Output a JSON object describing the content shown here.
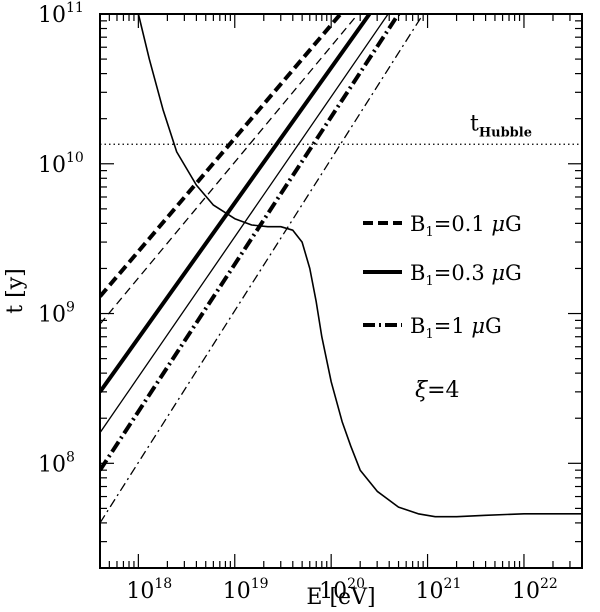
{
  "chart_data": {
    "type": "line",
    "xlabel": "E [eV]",
    "ylabel": "t [y]",
    "x_scale": "log",
    "y_scale": "log",
    "xlim": [
      4e+17,
      4e+22
    ],
    "ylim": [
      20000000.0,
      100000000000.0
    ],
    "grid": false,
    "x_ticks": [
      {
        "base": "10",
        "exp": "18",
        "value": 1e+18
      },
      {
        "base": "10",
        "exp": "19",
        "value": 1e+19
      },
      {
        "base": "10",
        "exp": "20",
        "value": 1e+20
      },
      {
        "base": "10",
        "exp": "21",
        "value": 1e+21
      },
      {
        "base": "10",
        "exp": "22",
        "value": 1e+22
      }
    ],
    "y_ticks": [
      {
        "base": "10",
        "exp": "8",
        "value": 100000000.0
      },
      {
        "base": "10",
        "exp": "9",
        "value": 1000000000.0
      },
      {
        "base": "10",
        "exp": "10",
        "value": 10000000000.0
      },
      {
        "base": "10",
        "exp": "11",
        "value": 100000000000.0
      }
    ],
    "hubble": {
      "label": "t",
      "sub": "Hubble",
      "value": 13500000000.0
    },
    "legend": [
      {
        "prefix": "B",
        "sub": "1",
        "text": "=0.1 ",
        "mu": "μ",
        "unit": "G",
        "style": "dashed"
      },
      {
        "prefix": "B",
        "sub": "1",
        "text": "=0.3 ",
        "mu": "μ",
        "unit": "G",
        "style": "solid"
      },
      {
        "prefix": "B",
        "sub": "1",
        "text": "=1 ",
        "mu": "μ",
        "unit": "G",
        "style": "dashdot"
      }
    ],
    "annotation": {
      "symbol": "ξ",
      "text": "=4"
    },
    "series": [
      {
        "style": "dashed",
        "width": "thick",
        "points": [
          [
            4e+17,
            1300000000.0
          ],
          [
            1.25e+20,
            100000000000.0
          ]
        ]
      },
      {
        "style": "dashed",
        "width": "thin",
        "points": [
          [
            4e+17,
            850000000.0
          ],
          [
            1.9e+20,
            100000000000.0
          ]
        ]
      },
      {
        "style": "solid",
        "width": "thick",
        "points": [
          [
            4e+17,
            300000000.0
          ],
          [
            2.5e+20,
            100000000000.0
          ]
        ]
      },
      {
        "style": "solid",
        "width": "thin",
        "points": [
          [
            4e+17,
            160000000.0
          ],
          [
            3.9e+20,
            100000000000.0
          ]
        ]
      },
      {
        "style": "dashdot",
        "width": "thick",
        "points": [
          [
            4e+17,
            90000000.0
          ],
          [
            5e+20,
            100000000000.0
          ]
        ]
      },
      {
        "style": "dashdot",
        "width": "thin",
        "points": [
          [
            4e+17,
            40000000.0
          ],
          [
            9e+20,
            100000000000.0
          ]
        ]
      },
      {
        "style": "solid",
        "width": "medium",
        "points": [
          [
            1e+18,
            100000000000.0
          ],
          [
            1.3e+18,
            50000000000.0
          ],
          [
            1.8e+18,
            23000000000.0
          ],
          [
            2.5e+18,
            12000000000.0
          ],
          [
            4e+18,
            7200000000.0
          ],
          [
            6e+18,
            5300000000.0
          ],
          [
            1e+19,
            4300000000.0
          ],
          [
            1.5e+19,
            3900000000.0
          ],
          [
            2.2e+19,
            3800000000.0
          ],
          [
            3e+19,
            3800000000.0
          ],
          [
            4e+19,
            3600000000.0
          ],
          [
            5e+19,
            3000000000.0
          ],
          [
            6e+19,
            2000000000.0
          ],
          [
            7e+19,
            1200000000.0
          ],
          [
            8e+19,
            700000000.0
          ],
          [
            1e+20,
            350000000.0
          ],
          [
            1.3e+20,
            190000000.0
          ],
          [
            1.6e+20,
            130000000.0
          ],
          [
            2e+20,
            90000000.0
          ],
          [
            3e+20,
            65000000.0
          ],
          [
            5e+20,
            51000000.0
          ],
          [
            8e+20,
            46000000.0
          ],
          [
            1.2e+21,
            44000000.0
          ],
          [
            2e+21,
            44000000.0
          ],
          [
            4e+21,
            45000000.0
          ],
          [
            1e+22,
            46000000.0
          ],
          [
            2e+22,
            46000000.0
          ],
          [
            4e+22,
            46000000.0
          ]
        ]
      }
    ]
  }
}
